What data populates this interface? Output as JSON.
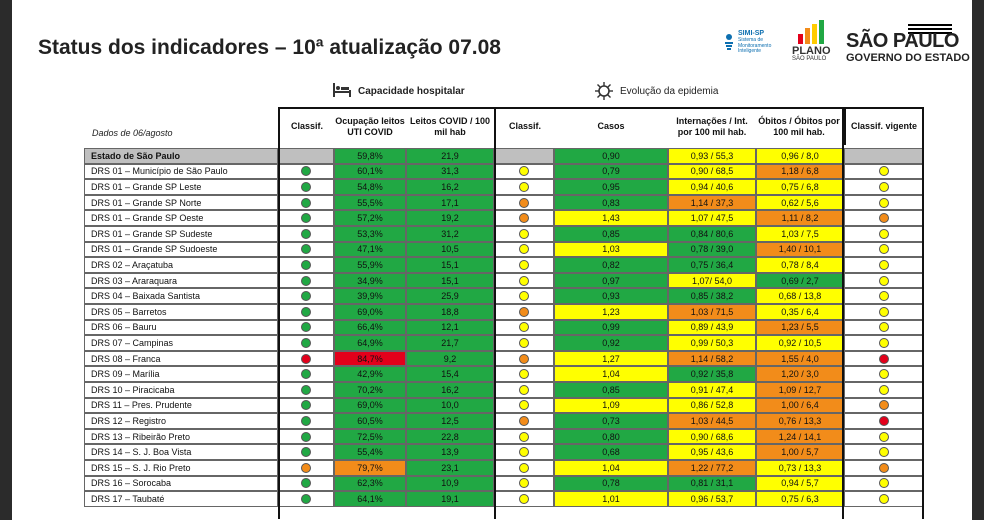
{
  "title": "Status dos indicadores – 10ª atualização 07.08",
  "logos": {
    "simi_name": "SIMI-SP",
    "simi_sub": "Sistema de Monitoramento Inteligente",
    "plano_line1": "PLANO",
    "plano_line2": "SÃO PAULO",
    "sp_line1": "SÃO PAULO",
    "sp_line2": "GOVERNO DO ESTADO"
  },
  "sections": {
    "capacity": {
      "label": "Capacidade hospitalar",
      "icon": "hospital-bed-icon"
    },
    "epidemic": {
      "label": "Evolução da epidemia",
      "icon": "virus-icon"
    }
  },
  "dados_label": "Dados de 06/agosto",
  "headers": {
    "classif1": "Classif.",
    "ocupacao": "Ocupação leitos UTI COVID",
    "leitos": "Leitos COVID / 100 mil hab",
    "classif2": "Classif.",
    "casos": "Casos",
    "internacoes": "Internações / Int. por 100 mil hab.",
    "obitos": "Óbitos / Óbitos por 100 mil hab.",
    "vigente": "Classif. vigente"
  },
  "colors": {
    "green": "#21a844",
    "yellow": "#ffff00",
    "orange": "#f28c1a",
    "red": "#e3001b",
    "gray": "#bfbfbf"
  },
  "rows": [
    {
      "name": "Estado de São Paulo",
      "c1": "",
      "oc": "59,8%",
      "oc_col": "green",
      "le": "21,9",
      "le_col": "green",
      "c2": "",
      "ca": "0,90",
      "ca_col": "green",
      "in": "0,93 / 55,3",
      "in_col": "yellow",
      "ob": "0,96 / 8,0",
      "ob_col": "yellow",
      "cv": ""
    },
    {
      "name": "DRS 01 – Município de São Paulo",
      "c1": "green",
      "oc": "60,1%",
      "oc_col": "green",
      "le": "31,3",
      "le_col": "green",
      "c2": "yellow",
      "ca": "0,79",
      "ca_col": "green",
      "in": "0,90 / 68,5",
      "in_col": "yellow",
      "ob": "1,18 / 6,8",
      "ob_col": "orange",
      "cv": "yellow"
    },
    {
      "name": "DRS 01 – Grande SP Leste",
      "c1": "green",
      "oc": "54,8%",
      "oc_col": "green",
      "le": "16,2",
      "le_col": "green",
      "c2": "yellow",
      "ca": "0,95",
      "ca_col": "green",
      "in": "0,94 / 40,6",
      "in_col": "yellow",
      "ob": "0,75 / 6,8",
      "ob_col": "yellow",
      "cv": "yellow"
    },
    {
      "name": "DRS 01 – Grande SP Norte",
      "c1": "green",
      "oc": "55,5%",
      "oc_col": "green",
      "le": "17,1",
      "le_col": "green",
      "c2": "orange",
      "ca": "0,83",
      "ca_col": "green",
      "in": "1,14 / 37,3",
      "in_col": "orange",
      "ob": "0,62 / 5,6",
      "ob_col": "yellow",
      "cv": "yellow"
    },
    {
      "name": "DRS 01 – Grande SP Oeste",
      "c1": "green",
      "oc": "57,2%",
      "oc_col": "green",
      "le": "19,2",
      "le_col": "green",
      "c2": "orange",
      "ca": "1,43",
      "ca_col": "yellow",
      "in": "1,07 / 47,5",
      "in_col": "yellow",
      "ob": "1,11 / 8,2",
      "ob_col": "orange",
      "cv": "orange"
    },
    {
      "name": "DRS 01 – Grande SP Sudeste",
      "c1": "green",
      "oc": "53,3%",
      "oc_col": "green",
      "le": "31,2",
      "le_col": "green",
      "c2": "yellow",
      "ca": "0,85",
      "ca_col": "green",
      "in": "0,84 / 80,6",
      "in_col": "green",
      "ob": "1,03 / 7,5",
      "ob_col": "yellow",
      "cv": "yellow"
    },
    {
      "name": "DRS 01 – Grande SP Sudoeste",
      "c1": "green",
      "oc": "47,1%",
      "oc_col": "green",
      "le": "10,5",
      "le_col": "green",
      "c2": "yellow",
      "ca": "1,03",
      "ca_col": "yellow",
      "in": "0,78 / 39,0",
      "in_col": "green",
      "ob": "1,40 / 10,1",
      "ob_col": "orange",
      "cv": "yellow"
    },
    {
      "name": "DRS 02 – Araçatuba",
      "c1": "green",
      "oc": "55,9%",
      "oc_col": "green",
      "le": "15,1",
      "le_col": "green",
      "c2": "yellow",
      "ca": "0,82",
      "ca_col": "green",
      "in": "0,75 / 36,4",
      "in_col": "green",
      "ob": "0,78 / 8,4",
      "ob_col": "yellow",
      "cv": "yellow"
    },
    {
      "name": "DRS 03 – Araraquara",
      "c1": "green",
      "oc": "34,9%",
      "oc_col": "green",
      "le": "15,1",
      "le_col": "green",
      "c2": "yellow",
      "ca": "0,97",
      "ca_col": "green",
      "in": "1,07/ 54,0",
      "in_col": "yellow",
      "ob": "0,69 / 2,7",
      "ob_col": "green",
      "cv": "yellow"
    },
    {
      "name": "DRS 04 – Baixada Santista",
      "c1": "green",
      "oc": "39,9%",
      "oc_col": "green",
      "le": "25,9",
      "le_col": "green",
      "c2": "yellow",
      "ca": "0,93",
      "ca_col": "green",
      "in": "0,85 / 38,2",
      "in_col": "green",
      "ob": "0,68 / 13,8",
      "ob_col": "yellow",
      "cv": "yellow"
    },
    {
      "name": "DRS 05 – Barretos",
      "c1": "green",
      "oc": "69,0%",
      "oc_col": "green",
      "le": "18,8",
      "le_col": "green",
      "c2": "orange",
      "ca": "1,23",
      "ca_col": "yellow",
      "in": "1,03 / 71,5",
      "in_col": "orange",
      "ob": "0,35 / 6,4",
      "ob_col": "yellow",
      "cv": "yellow"
    },
    {
      "name": "DRS 06 – Bauru",
      "c1": "green",
      "oc": "66,4%",
      "oc_col": "green",
      "le": "12,1",
      "le_col": "green",
      "c2": "yellow",
      "ca": "0,99",
      "ca_col": "green",
      "in": "0,89 / 43,9",
      "in_col": "yellow",
      "ob": "1,23 / 5,5",
      "ob_col": "orange",
      "cv": "yellow"
    },
    {
      "name": "DRS 07 – Campinas",
      "c1": "green",
      "oc": "64,9%",
      "oc_col": "green",
      "le": "21,7",
      "le_col": "green",
      "c2": "yellow",
      "ca": "0,92",
      "ca_col": "green",
      "in": "0,99 / 50,3",
      "in_col": "yellow",
      "ob": "0,92 / 10,5",
      "ob_col": "yellow",
      "cv": "yellow"
    },
    {
      "name": "DRS 08 – Franca",
      "c1": "red",
      "oc": "84,7%",
      "oc_col": "red",
      "le": "9,2",
      "le_col": "green",
      "c2": "orange",
      "ca": "1,27",
      "ca_col": "yellow",
      "in": "1,14 / 58,2",
      "in_col": "orange",
      "ob": "1,55 / 4,0",
      "ob_col": "orange",
      "cv": "red"
    },
    {
      "name": "DRS 09 – Marília",
      "c1": "green",
      "oc": "42,9%",
      "oc_col": "green",
      "le": "15,4",
      "le_col": "green",
      "c2": "yellow",
      "ca": "1,04",
      "ca_col": "yellow",
      "in": "0,92 / 35,8",
      "in_col": "green",
      "ob": "1,20 / 3,0",
      "ob_col": "orange",
      "cv": "yellow"
    },
    {
      "name": "DRS 10 – Piracicaba",
      "c1": "green",
      "oc": "70,2%",
      "oc_col": "green",
      "le": "16,2",
      "le_col": "green",
      "c2": "yellow",
      "ca": "0,85",
      "ca_col": "green",
      "in": "0,91 / 47,4",
      "in_col": "yellow",
      "ob": "1,09 / 12,7",
      "ob_col": "orange",
      "cv": "yellow"
    },
    {
      "name": "DRS 11 – Pres. Prudente",
      "c1": "green",
      "oc": "69,0%",
      "oc_col": "green",
      "le": "10,0",
      "le_col": "green",
      "c2": "yellow",
      "ca": "1,09",
      "ca_col": "yellow",
      "in": "0,86 / 52,8",
      "in_col": "yellow",
      "ob": "1,00 / 6,4",
      "ob_col": "orange",
      "cv": "orange"
    },
    {
      "name": "DRS 12 – Registro",
      "c1": "green",
      "oc": "60,5%",
      "oc_col": "green",
      "le": "12,5",
      "le_col": "green",
      "c2": "orange",
      "ca": "0,73",
      "ca_col": "green",
      "in": "1,03 / 44,5",
      "in_col": "orange",
      "ob": "0,76 / 13,3",
      "ob_col": "orange",
      "cv": "red"
    },
    {
      "name": "DRS 13 – Ribeirão Preto",
      "c1": "green",
      "oc": "72,5%",
      "oc_col": "green",
      "le": "22,8",
      "le_col": "green",
      "c2": "yellow",
      "ca": "0,80",
      "ca_col": "green",
      "in": "0,90 / 68,6",
      "in_col": "yellow",
      "ob": "1,24 / 14,1",
      "ob_col": "orange",
      "cv": "yellow"
    },
    {
      "name": "DRS 14 – S. J. Boa Vista",
      "c1": "green",
      "oc": "55,4%",
      "oc_col": "green",
      "le": "13,9",
      "le_col": "green",
      "c2": "yellow",
      "ca": "0,68",
      "ca_col": "green",
      "in": "0,95 / 43,6",
      "in_col": "yellow",
      "ob": "1,00 / 5,7",
      "ob_col": "orange",
      "cv": "yellow"
    },
    {
      "name": "DRS 15 – S. J. Rio Preto",
      "c1": "orange",
      "oc": "79,7%",
      "oc_col": "orange",
      "le": "23,1",
      "le_col": "green",
      "c2": "yellow",
      "ca": "1,04",
      "ca_col": "yellow",
      "in": "1,22 / 77,2",
      "in_col": "orange",
      "ob": "0,73 / 13,3",
      "ob_col": "yellow",
      "cv": "orange"
    },
    {
      "name": "DRS 16 – Sorocaba",
      "c1": "green",
      "oc": "62,3%",
      "oc_col": "green",
      "le": "10,9",
      "le_col": "green",
      "c2": "yellow",
      "ca": "0,78",
      "ca_col": "green",
      "in": "0,81 / 31,1",
      "in_col": "green",
      "ob": "0,94 / 5,7",
      "ob_col": "yellow",
      "cv": "yellow"
    },
    {
      "name": "DRS 17 – Taubaté",
      "c1": "green",
      "oc": "64,1%",
      "oc_col": "green",
      "le": "19,1",
      "le_col": "green",
      "c2": "yellow",
      "ca": "1,01",
      "ca_col": "yellow",
      "in": "0,96 / 53,7",
      "in_col": "yellow",
      "ob": "0,75 / 6,3",
      "ob_col": "yellow",
      "cv": "yellow"
    }
  ]
}
